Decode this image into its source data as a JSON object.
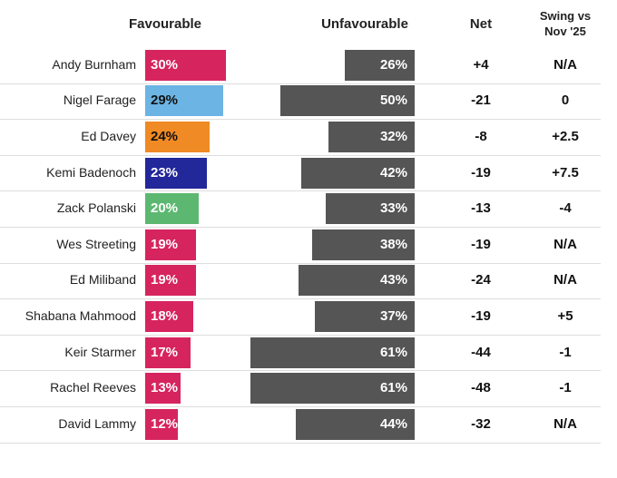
{
  "chart_data": {
    "type": "bar",
    "categories": [
      "Andy Burnham",
      "Nigel Farage",
      "Ed Davey",
      "Kemi Badenoch",
      "Zack Polanski",
      "Wes Streeting",
      "Ed Miliband",
      "Shabana Mahmood",
      "Keir Starmer",
      "Rachel Reeves",
      "David Lammy"
    ],
    "series": [
      {
        "name": "Favourable",
        "colors": [
          "#d6245f",
          "#6cb4e4",
          "#f08a24",
          "#22279a",
          "#5cb870",
          "#d6245f",
          "#d6245f",
          "#d6245f",
          "#d6245f",
          "#d6245f",
          "#d6245f"
        ],
        "values": [
          30,
          29,
          24,
          23,
          20,
          19,
          19,
          18,
          17,
          13,
          12
        ],
        "value_labels": [
          "30%",
          "29%",
          "24%",
          "23%",
          "20%",
          "19%",
          "19%",
          "18%",
          "17%",
          "13%",
          "12%"
        ]
      },
      {
        "name": "Unfavourable",
        "color": "#555555",
        "values": [
          26,
          50,
          32,
          42,
          33,
          38,
          43,
          37,
          61,
          61,
          44
        ],
        "value_labels": [
          "26%",
          "50%",
          "32%",
          "42%",
          "33%",
          "38%",
          "43%",
          "37%",
          "61%",
          "61%",
          "44%"
        ]
      }
    ],
    "net_header": "Net",
    "net": [
      "+4",
      "-21",
      "-8",
      "-19",
      "-13",
      "-19",
      "-24",
      "-19",
      "-44",
      "-48",
      "-32"
    ],
    "swing_header": "Swing vs Nov '25",
    "swing": [
      "N/A",
      "0",
      "+2.5",
      "+7.5",
      "-4",
      "N/A",
      "N/A",
      "+5",
      "-1",
      "-1",
      "N/A"
    ]
  }
}
